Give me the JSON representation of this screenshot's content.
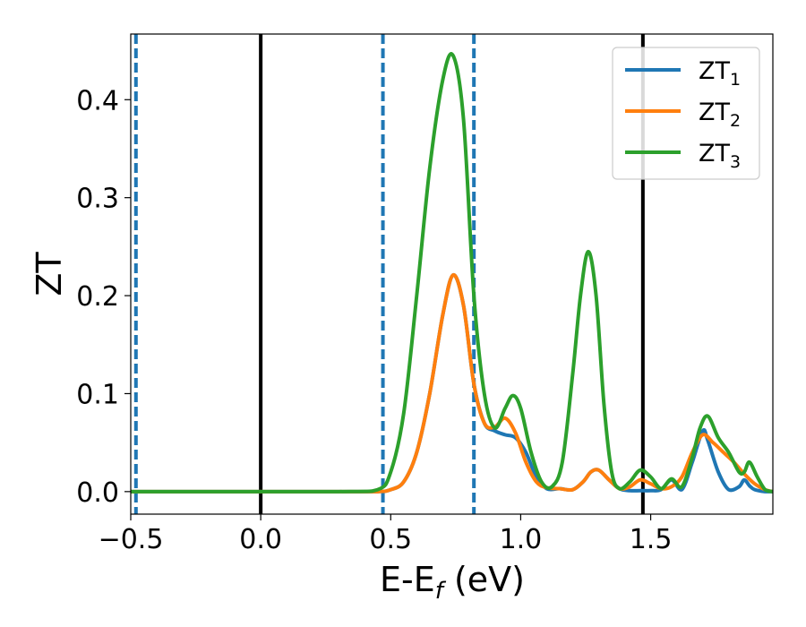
{
  "chart_data": {
    "type": "line",
    "xlabel_main": "E-E",
    "xlabel_sub": "f",
    "xlabel_unit": " (eV)",
    "ylabel": "ZT",
    "xlim": [
      -0.5,
      1.97
    ],
    "ylim": [
      -0.023,
      0.467
    ],
    "grid": false,
    "legend_position": "top-right",
    "x_ticks": [
      {
        "value": -0.5,
        "label": "−0.5"
      },
      {
        "value": 0.0,
        "label": "0.0"
      },
      {
        "value": 0.5,
        "label": "0.5"
      },
      {
        "value": 1.0,
        "label": "1.0"
      },
      {
        "value": 1.5,
        "label": "1.5"
      }
    ],
    "y_ticks": [
      {
        "value": 0.0,
        "label": "0.0"
      },
      {
        "value": 0.1,
        "label": "0.1"
      },
      {
        "value": 0.2,
        "label": "0.2"
      },
      {
        "value": 0.3,
        "label": "0.3"
      },
      {
        "value": 0.4,
        "label": "0.4"
      }
    ],
    "vertical_lines": [
      {
        "x": -0.48,
        "color": "#1f77b4",
        "style": "dashed"
      },
      {
        "x": 0.0,
        "color": "#000000",
        "style": "solid"
      },
      {
        "x": 0.47,
        "color": "#1f77b4",
        "style": "dashed"
      },
      {
        "x": 0.82,
        "color": "#1f77b4",
        "style": "dashed"
      },
      {
        "x": 1.47,
        "color": "#000000",
        "style": "solid"
      }
    ],
    "series": [
      {
        "name_main": "ZT",
        "name_sub": "1",
        "color": "#1f77b4",
        "x": [
          -0.5,
          0.3,
          0.45,
          0.5,
          0.55,
          0.6,
          0.65,
          0.7,
          0.74,
          0.78,
          0.82,
          0.86,
          0.9,
          0.94,
          0.98,
          1.02,
          1.06,
          1.1,
          1.15,
          1.2,
          1.24,
          1.27,
          1.3,
          1.34,
          1.38,
          1.42,
          1.46,
          1.5,
          1.54,
          1.58,
          1.62,
          1.66,
          1.7,
          1.72,
          1.76,
          1.8,
          1.84,
          1.86,
          1.88,
          1.9,
          1.94,
          1.97
        ],
        "y": [
          0.0,
          0.0,
          0.0,
          0.002,
          0.01,
          0.04,
          0.1,
          0.18,
          0.221,
          0.19,
          0.11,
          0.07,
          0.062,
          0.058,
          0.055,
          0.04,
          0.015,
          0.003,
          0.003,
          0.002,
          0.01,
          0.02,
          0.022,
          0.012,
          0.003,
          0.001,
          0.001,
          0.001,
          0.002,
          0.012,
          0.002,
          0.03,
          0.062,
          0.052,
          0.02,
          0.002,
          0.005,
          0.012,
          0.006,
          0.002,
          0.0,
          0.0
        ]
      },
      {
        "name_main": "ZT",
        "name_sub": "2",
        "color": "#ff7f0e",
        "x": [
          -0.5,
          0.3,
          0.45,
          0.5,
          0.55,
          0.6,
          0.65,
          0.7,
          0.74,
          0.78,
          0.82,
          0.86,
          0.9,
          0.94,
          0.98,
          1.02,
          1.06,
          1.1,
          1.15,
          1.2,
          1.24,
          1.27,
          1.3,
          1.34,
          1.38,
          1.42,
          1.46,
          1.5,
          1.54,
          1.58,
          1.62,
          1.66,
          1.7,
          1.74,
          1.78,
          1.82,
          1.86,
          1.9,
          1.94,
          1.97
        ],
        "y": [
          0.0,
          0.0,
          0.0,
          0.002,
          0.01,
          0.04,
          0.1,
          0.18,
          0.221,
          0.19,
          0.11,
          0.07,
          0.066,
          0.075,
          0.06,
          0.03,
          0.01,
          0.004,
          0.003,
          0.002,
          0.01,
          0.02,
          0.022,
          0.012,
          0.003,
          0.005,
          0.012,
          0.008,
          0.003,
          0.005,
          0.015,
          0.04,
          0.058,
          0.05,
          0.04,
          0.03,
          0.018,
          0.008,
          0.002,
          0.0
        ]
      },
      {
        "name_main": "ZT",
        "name_sub": "3",
        "color": "#2ca02c",
        "x": [
          -0.5,
          0.3,
          0.45,
          0.5,
          0.55,
          0.6,
          0.65,
          0.7,
          0.74,
          0.78,
          0.82,
          0.86,
          0.9,
          0.94,
          0.97,
          1.0,
          1.04,
          1.08,
          1.12,
          1.16,
          1.2,
          1.23,
          1.26,
          1.29,
          1.32,
          1.35,
          1.38,
          1.42,
          1.46,
          1.5,
          1.54,
          1.58,
          1.62,
          1.66,
          1.69,
          1.72,
          1.76,
          1.8,
          1.84,
          1.86,
          1.88,
          1.91,
          1.94,
          1.97
        ],
        "y": [
          0.0,
          0.0,
          0.002,
          0.02,
          0.08,
          0.2,
          0.33,
          0.42,
          0.445,
          0.38,
          0.2,
          0.1,
          0.065,
          0.085,
          0.098,
          0.085,
          0.04,
          0.01,
          0.005,
          0.03,
          0.12,
          0.2,
          0.245,
          0.2,
          0.09,
          0.02,
          0.003,
          0.01,
          0.022,
          0.015,
          0.003,
          0.013,
          0.005,
          0.035,
          0.065,
          0.077,
          0.055,
          0.04,
          0.02,
          0.02,
          0.03,
          0.015,
          0.002,
          0.0
        ]
      }
    ]
  }
}
